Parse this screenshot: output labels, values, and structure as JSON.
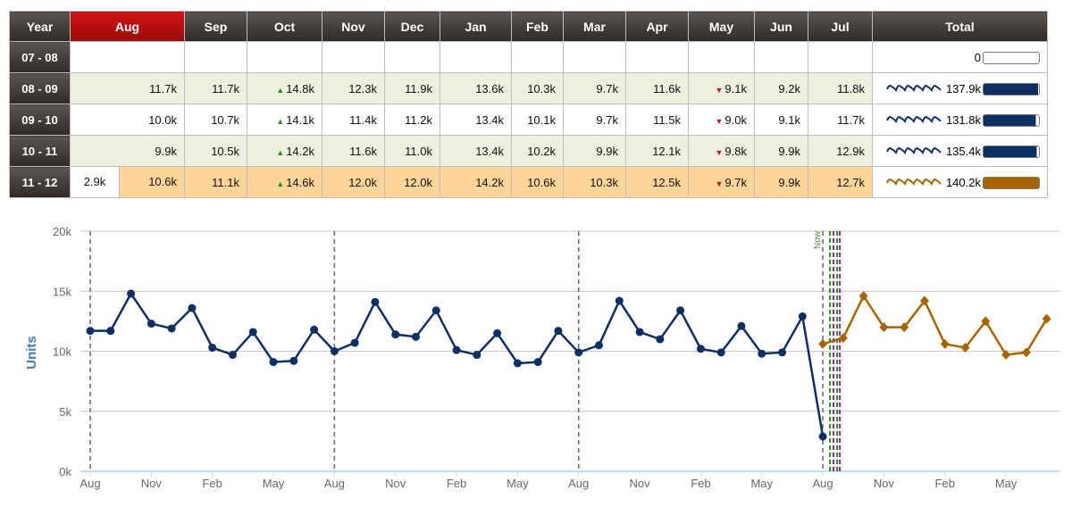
{
  "table": {
    "headers": [
      "Year",
      "Aug",
      "Sep",
      "Oct",
      "Nov",
      "Dec",
      "Jan",
      "Feb",
      "Mar",
      "Apr",
      "May",
      "Jun",
      "Jul",
      "Total"
    ],
    "selected_month": "Aug",
    "rows": [
      {
        "year": "07 - 08",
        "cells": [
          "",
          "",
          "",
          "",
          "",
          "",
          "",
          "",
          "",
          "",
          "",
          ""
        ],
        "total": "0",
        "total_fraction": 0,
        "color": "#ffffff"
      },
      {
        "year": "08 - 09",
        "cells": [
          "11.7k",
          "11.7k",
          "14.8k",
          "12.3k",
          "11.9k",
          "13.6k",
          "10.3k",
          "9.7k",
          "11.6k",
          "9.1k",
          "9.2k",
          "11.8k"
        ],
        "total": "137.9k",
        "total_fraction": 0.98,
        "color": "#0d2f63"
      },
      {
        "year": "09 - 10",
        "cells": [
          "10.0k",
          "10.7k",
          "14.1k",
          "11.4k",
          "11.2k",
          "13.4k",
          "10.1k",
          "9.7k",
          "11.5k",
          "9.0k",
          "9.1k",
          "11.7k"
        ],
        "total": "131.8k",
        "total_fraction": 0.94,
        "color": "#0d2f63"
      },
      {
        "year": "10 - 11",
        "cells": [
          "9.9k",
          "10.5k",
          "14.2k",
          "11.6k",
          "11.0k",
          "13.4k",
          "10.2k",
          "9.9k",
          "12.1k",
          "9.8k",
          "9.9k",
          "12.9k"
        ],
        "total": "135.4k",
        "total_fraction": 0.96,
        "color": "#0d2f63"
      },
      {
        "year": "11 - 12",
        "pre": "2.9k",
        "cells": [
          "10.6k",
          "11.1k",
          "14.6k",
          "12.0k",
          "12.0k",
          "14.2k",
          "10.6k",
          "10.3k",
          "12.5k",
          "9.7k",
          "9.9k",
          "12.7k"
        ],
        "total": "140.2k",
        "total_fraction": 1.0,
        "color": "#a86400"
      }
    ],
    "up_month_index": 2,
    "down_month_index": 9
  },
  "chart_data": {
    "type": "line",
    "ylabel": "Units",
    "ylim": [
      0,
      20000
    ],
    "yticks": [
      "0k",
      "5k",
      "10k",
      "15k",
      "20k"
    ],
    "xticks": [
      "Aug",
      "Nov",
      "Feb",
      "May",
      "Aug",
      "Nov",
      "Feb",
      "May",
      "Aug",
      "Nov",
      "Feb",
      "May",
      "Aug",
      "Nov",
      "Feb",
      "May"
    ],
    "marker_label": "Now",
    "series": [
      {
        "color": "#0d2f63",
        "marker": "circle",
        "values": [
          11700,
          11700,
          14800,
          12300,
          11900,
          13600,
          10300,
          9700,
          11600,
          9100,
          9200,
          11800,
          10000,
          10700,
          14100,
          11400,
          11200,
          13400,
          10100,
          9700,
          11500,
          9000,
          9100,
          11700,
          9900,
          10500,
          14200,
          11600,
          11000,
          13400,
          10200,
          9900,
          12100,
          9800,
          9900,
          12900,
          2900
        ]
      },
      {
        "color": "#a86400",
        "marker": "diamond",
        "start_index": 36,
        "values": [
          10600,
          11100,
          14600,
          12000,
          12000,
          14200,
          10600,
          10300,
          12500,
          9700,
          9900,
          12700
        ]
      }
    ]
  }
}
